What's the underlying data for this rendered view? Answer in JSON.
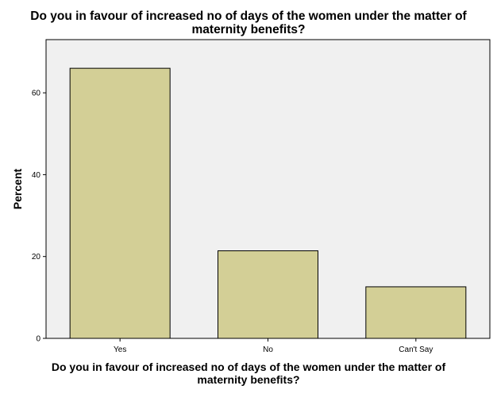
{
  "chart_data": {
    "type": "bar",
    "title": "Do you in favour of increased no of days of the women under the matter of\nmaternity benefits?",
    "xlabel": "Do you in favour of increased no of days of the women under the matter of\nmaternity benefits?",
    "ylabel": "Percent",
    "categories": [
      "Yes",
      "No",
      "Can't Say"
    ],
    "values": [
      66,
      21.4,
      12.6
    ],
    "ylim": [
      0,
      73
    ],
    "yticks": [
      0,
      20,
      40,
      60
    ],
    "grid": false,
    "colors": {
      "bar_fill": "#d3cf96",
      "bar_stroke": "#000000",
      "plot_background": "#f0f0f0",
      "axis": "#000000"
    }
  }
}
